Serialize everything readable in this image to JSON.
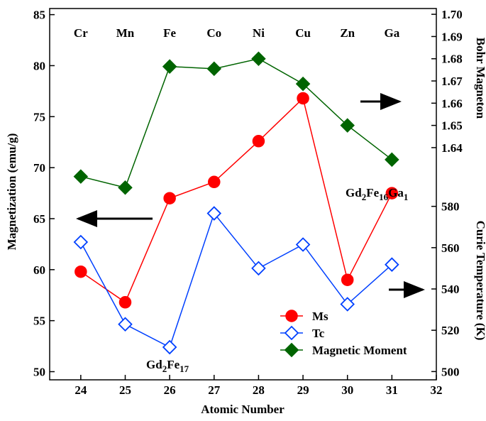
{
  "chart_data": {
    "type": "line",
    "x_label": "Atomic Number",
    "y_label": "Magnetization (emu/g)",
    "y2_label": "Curie Temperature (K)",
    "y3_label": "Bohr Magneton",
    "x": [
      24,
      25,
      26,
      27,
      28,
      29,
      30,
      31
    ],
    "element_labels": [
      "Cr",
      "Mn",
      "Fe",
      "Co",
      "Ni",
      "Cu",
      "Zn",
      "Ga"
    ],
    "xlim": [
      23.3,
      32
    ],
    "xticks": [
      24,
      25,
      26,
      27,
      28,
      29,
      30,
      31,
      32
    ],
    "ylim": [
      49.2,
      85.6
    ],
    "yticks": [
      50,
      55,
      60,
      65,
      70,
      75,
      80,
      85
    ],
    "y2lim": [
      496,
      675.8
    ],
    "y2ticks": [
      500,
      520,
      540,
      560,
      580
    ],
    "y3lim": [
      1.5355,
      1.7026
    ],
    "y3ticks": [
      1.64,
      1.65,
      1.66,
      1.67,
      1.68,
      1.69,
      {
        "value": 1.7,
        "label": "1.70"
      }
    ],
    "series": [
      {
        "name": "Ms",
        "color": "#ff0000",
        "axis": "y",
        "marker": "circle",
        "filled": true,
        "values": [
          59.8,
          56.8,
          67.0,
          68.6,
          72.6,
          76.8,
          59.0,
          67.5
        ]
      },
      {
        "name": "Tc",
        "color": "#0040ff",
        "axis": "y2",
        "marker": "diamond",
        "filled": false,
        "values": [
          562.7,
          522.9,
          511.8,
          576.6,
          550.0,
          561.5,
          532.6,
          551.8
        ]
      },
      {
        "name": "Magnetic Moment",
        "color": "#006400",
        "axis": "y3",
        "marker": "diamond",
        "filled": true,
        "values": [
          1.627,
          1.622,
          1.6765,
          1.6755,
          1.68,
          1.6687,
          1.65,
          1.6346
        ]
      }
    ],
    "annotations": [
      {
        "parts": [
          "Gd",
          "2",
          "Fe",
          "17"
        ]
      },
      {
        "parts": [
          "Gd",
          "2",
          "Fe",
          "16",
          "Ga",
          "1"
        ]
      }
    ]
  }
}
